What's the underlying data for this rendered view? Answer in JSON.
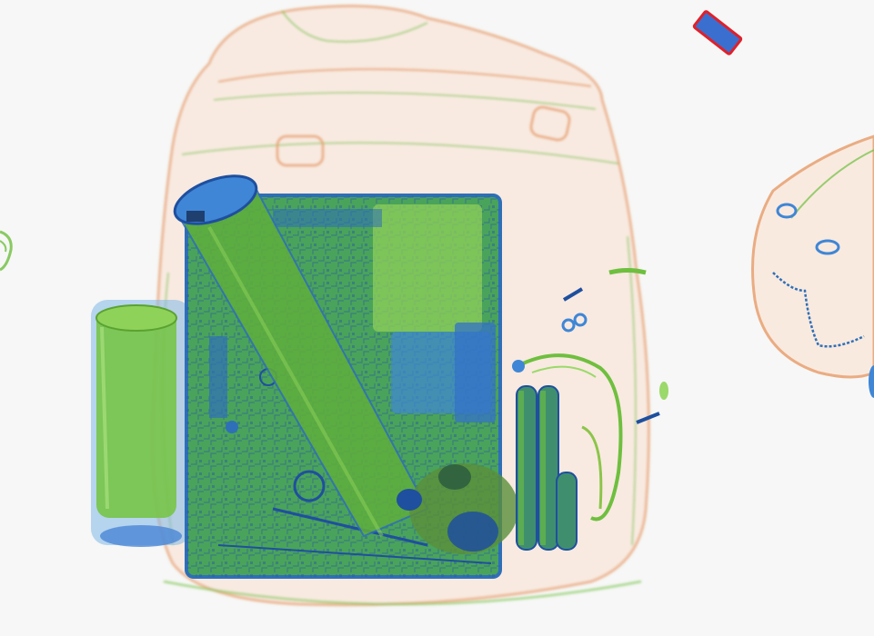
{
  "scan": {
    "background": "#f6f7f6",
    "palette": {
      "organic": "#e8a070",
      "organic_light": "#f3c9a8",
      "mixed": "#6fbf3f",
      "mixed_dark": "#4d9e2a",
      "metal": "#3f7fd0",
      "metal_dark": "#1f4f9f",
      "marker_fill": "#3a6fd0",
      "marker_border": "#e0202a"
    },
    "objects": [
      {
        "name": "backpack",
        "material": "organic"
      },
      {
        "name": "laptop",
        "material": "metal"
      },
      {
        "name": "bottle",
        "material": "mixed"
      },
      {
        "name": "cup",
        "material": "mixed"
      },
      {
        "name": "batteries",
        "material": "metal"
      },
      {
        "name": "cable",
        "material": "mixed"
      },
      {
        "name": "keys",
        "material": "metal"
      },
      {
        "name": "second-bag",
        "material": "organic"
      },
      {
        "name": "threat-marker",
        "material": "metal"
      }
    ]
  }
}
